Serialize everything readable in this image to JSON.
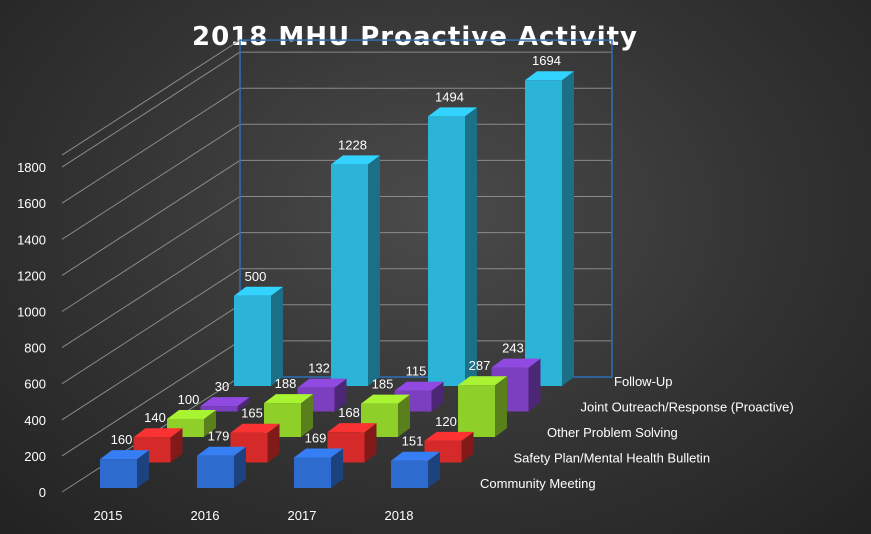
{
  "chart_data": {
    "type": "bar",
    "title": "2018 MHU Proactive Activity",
    "categories": [
      "2015",
      "2016",
      "2017",
      "2018"
    ],
    "ylim": [
      0,
      1800
    ],
    "yticks": [
      0,
      200,
      400,
      600,
      800,
      1000,
      1200,
      1400,
      1600,
      1800
    ],
    "grid": true,
    "legend": "series labels along right depth axis",
    "series": [
      {
        "name": "Community Meeting",
        "color": "#2e6bcf",
        "values": [
          160,
          179,
          169,
          151
        ]
      },
      {
        "name": "Safety Plan/Mental Health Bulletin",
        "color": "#d42a2a",
        "values": [
          140,
          165,
          168,
          120
        ]
      },
      {
        "name": "Other Problem Solving",
        "color": "#8fcf2a",
        "values": [
          100,
          188,
          185,
          287
        ]
      },
      {
        "name": "Joint Outreach/Response (Proactive)",
        "color": "#7b3fbf",
        "values": [
          30,
          132,
          115,
          243
        ]
      },
      {
        "name": "Follow-Up",
        "color": "#2bb3d8",
        "values": [
          500,
          1228,
          1494,
          1694
        ]
      }
    ]
  }
}
